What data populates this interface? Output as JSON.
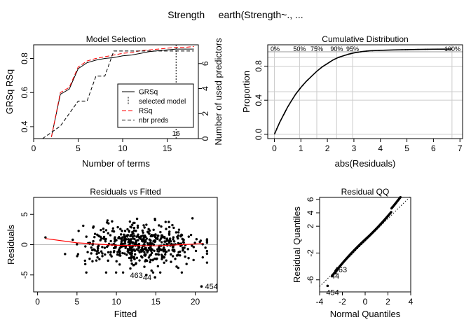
{
  "title": "Strength     earth(Strength~., ...",
  "chart_data": [
    {
      "id": "model-selection",
      "type": "line",
      "title": "Model Selection",
      "xlabel": "Number of terms",
      "ylabel": "GRSq   RSq",
      "ylabel_right": "Number of used predictors",
      "xlim": [
        0,
        18.5
      ],
      "ylim": [
        0.33,
        0.88
      ],
      "ylim_right": [
        0,
        7.5
      ],
      "xticks": [
        0,
        5,
        10,
        15
      ],
      "yticks": [
        0.4,
        0.6,
        0.8
      ],
      "yticks_right": [
        0,
        2,
        4,
        6
      ],
      "selected_model": 16,
      "selected_label": "16",
      "legend_position": "bottom-right",
      "series": [
        {
          "name": "GRSq",
          "color": "#000000",
          "dash": "",
          "x": [
            2,
            3,
            4,
            5,
            6,
            7,
            8,
            9,
            10,
            11,
            12,
            13,
            14,
            15,
            16,
            17,
            18
          ],
          "y": [
            0.34,
            0.59,
            0.62,
            0.74,
            0.775,
            0.79,
            0.8,
            0.805,
            0.815,
            0.82,
            0.83,
            0.84,
            0.845,
            0.85,
            0.855,
            0.855,
            0.855
          ]
        },
        {
          "name": "RSq",
          "color": "#ff0000",
          "dash": "6,3",
          "x": [
            2,
            3,
            4,
            5,
            6,
            7,
            8,
            9,
            10,
            11,
            12,
            13,
            14,
            15,
            16,
            17,
            18
          ],
          "y": [
            0.34,
            0.6,
            0.63,
            0.75,
            0.785,
            0.8,
            0.81,
            0.82,
            0.83,
            0.835,
            0.845,
            0.85,
            0.855,
            0.86,
            0.865,
            0.865,
            0.87
          ]
        },
        {
          "name": "nbr preds",
          "color": "#000000",
          "dash": "5,3",
          "x": [
            1,
            2,
            3,
            4,
            5,
            6,
            7,
            8,
            9,
            10,
            11,
            12,
            13,
            14,
            15,
            16,
            17,
            18
          ],
          "y": [
            0,
            0.5,
            1,
            2,
            3,
            3,
            5,
            5,
            7,
            7,
            7,
            7,
            7,
            7,
            7,
            7,
            7,
            7
          ],
          "axis": "right"
        }
      ],
      "legend": [
        "GRSq",
        "selected model",
        "RSq",
        "nbr preds"
      ]
    },
    {
      "id": "cumulative-distribution",
      "type": "line",
      "title": "Cumulative Distribution",
      "xlabel": "abs(Residuals)",
      "ylabel": "Proportion",
      "xlim": [
        -0.25,
        7.1
      ],
      "ylim": [
        -0.05,
        1.05
      ],
      "xticks": [
        0,
        1,
        2,
        3,
        4,
        5,
        6,
        7
      ],
      "yticks": [
        0.0,
        0.4,
        0.8
      ],
      "ytick_labels": [
        "0.0",
        "0.4",
        "0.8"
      ],
      "percentile_labels": [
        "0%",
        "50%",
        "75%",
        "90%",
        "95%",
        "100%"
      ],
      "percentile_x": [
        0,
        0.95,
        1.6,
        2.35,
        2.95,
        6.7
      ],
      "x": [
        0,
        0.1,
        0.2,
        0.3,
        0.4,
        0.5,
        0.6,
        0.7,
        0.8,
        0.9,
        1.0,
        1.2,
        1.4,
        1.6,
        1.8,
        2.0,
        2.2,
        2.4,
        2.6,
        2.8,
        3.0,
        3.3,
        3.6,
        4.0,
        4.5,
        5.0,
        5.5,
        6.0,
        6.7
      ],
      "y": [
        0,
        0.07,
        0.14,
        0.2,
        0.26,
        0.32,
        0.37,
        0.42,
        0.47,
        0.51,
        0.55,
        0.62,
        0.68,
        0.74,
        0.79,
        0.83,
        0.87,
        0.9,
        0.92,
        0.94,
        0.955,
        0.97,
        0.98,
        0.985,
        0.99,
        0.993,
        0.996,
        0.998,
        1.0
      ]
    },
    {
      "id": "residuals-vs-fitted",
      "type": "scatter",
      "title": "Residuals vs Fitted",
      "xlabel": "Fitted",
      "ylabel": "Residuals",
      "xlim": [
        -0.5,
        22.8
      ],
      "ylim": [
        -7.8,
        7.8
      ],
      "xticks": [
        0,
        5,
        10,
        15,
        20
      ],
      "yticks": [
        -5,
        0,
        5
      ],
      "ytick_labels": [
        "-5",
        "0",
        "5"
      ],
      "labeled_points": [
        {
          "label": "463",
          "x": 13.8,
          "y": -5.0
        },
        {
          "label": "44",
          "x": 14.9,
          "y": -5.4
        },
        {
          "label": "454",
          "x": 20.8,
          "y": -6.9
        }
      ],
      "smooth": {
        "x": [
          1,
          5,
          10,
          15,
          20,
          21
        ],
        "y": [
          1.0,
          0.3,
          -0.1,
          -0.2,
          0.1,
          0.2
        ]
      }
    },
    {
      "id": "residual-qq",
      "type": "scatter",
      "title": "Residual QQ",
      "xlabel": "Normal Quantiles",
      "ylabel": "Residual Quantiles",
      "xlim": [
        -4,
        4
      ],
      "ylim": [
        -7.8,
        6.3
      ],
      "xticks": [
        -4,
        -2,
        0,
        2,
        4
      ],
      "yticks": [
        -6,
        -2,
        2,
        4,
        6
      ],
      "labeled_points": [
        {
          "label": "463",
          "x": -2.6,
          "y": -5.0
        },
        {
          "label": "44",
          "x": -2.9,
          "y": -5.4
        },
        {
          "label": "454",
          "x": -3.3,
          "y": -6.9
        }
      ],
      "reference_line": {
        "x": [
          -4,
          4
        ],
        "y": [
          -7.0,
          6.5
        ]
      }
    }
  ]
}
